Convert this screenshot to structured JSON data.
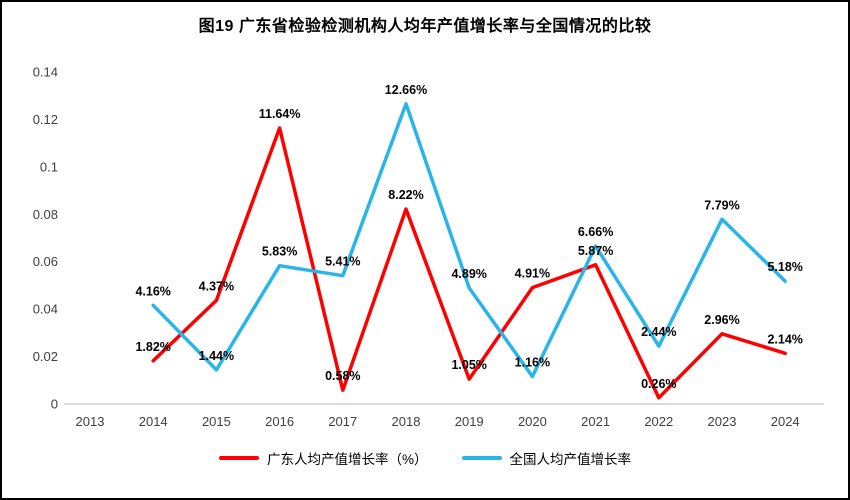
{
  "page": {
    "title": "图19  广东省检验检测机构人均年产值增长率与全国情况的比较"
  },
  "chart_data": {
    "type": "line",
    "title": "图19  广东省检验检测机构人均年产值增长率与全国情况的比较",
    "categories": [
      "2013",
      "2014",
      "2015",
      "2016",
      "2017",
      "2018",
      "2019",
      "2020",
      "2021",
      "2022",
      "2023",
      "2024"
    ],
    "xlabel": "",
    "ylabel": "",
    "ylim": [
      0,
      0.14
    ],
    "y_ticks": [
      "0",
      "0.02",
      "0.04",
      "0.06",
      "0.08",
      "0.1",
      "0.12",
      "0.14"
    ],
    "grid": false,
    "legend_position": "bottom",
    "series": [
      {
        "name": "广东人均产值增长率（%）",
        "color": "#ff0000",
        "values": [
          null,
          0.0182,
          0.0437,
          0.1164,
          0.0058,
          0.0822,
          0.0105,
          0.0491,
          0.0587,
          0.0026,
          0.0296,
          0.0214
        ],
        "labels": [
          null,
          "1.82%",
          "4.37%",
          "11.64%",
          "0.58%",
          "8.22%",
          "1.05%",
          "4.91%",
          "5.87%",
          "0.26%",
          "2.96%",
          "2.14%"
        ]
      },
      {
        "name": "全国人均产值增长率",
        "color": "#29b5e8",
        "values": [
          null,
          0.0416,
          0.0144,
          0.0583,
          0.0541,
          0.1266,
          0.0489,
          0.0116,
          0.0666,
          0.0244,
          0.0779,
          0.0518
        ],
        "labels": [
          null,
          "4.16%",
          "1.44%",
          "5.83%",
          "5.41%",
          "12.66%",
          "4.89%",
          "1.16%",
          "6.66%",
          "2.44%",
          "7.79%",
          "5.18%"
        ]
      }
    ]
  }
}
